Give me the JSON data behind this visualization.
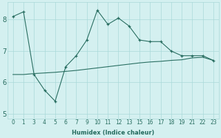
{
  "xlabel": "Humidex (Indice chaleur)",
  "xtick_labels": [
    "0",
    "1",
    "3",
    "4",
    "5",
    "6",
    "7",
    "9",
    "10",
    "11",
    "12",
    "13",
    "15",
    "16",
    "17",
    "18",
    "19",
    "21",
    "22",
    "23"
  ],
  "line1_y": [
    8.1,
    8.25,
    6.25,
    5.75,
    5.4,
    6.5,
    6.85,
    7.35,
    8.3,
    7.85,
    8.05,
    7.8,
    7.35,
    7.3,
    7.3,
    7.0,
    6.85,
    6.85,
    6.85,
    6.7
  ],
  "line2_y": [
    6.25,
    6.25,
    6.28,
    6.3,
    6.32,
    6.35,
    6.38,
    6.42,
    6.46,
    6.5,
    6.54,
    6.58,
    6.62,
    6.65,
    6.67,
    6.7,
    6.72,
    6.78,
    6.8,
    6.7
  ],
  "line_color": "#256b5e",
  "bg_color": "#d4f0f0",
  "grid_color": "#a8d8d8",
  "tick_color": "#256b5e",
  "ylim": [
    4.85,
    8.55
  ],
  "yticks": [
    5,
    6,
    7,
    8
  ],
  "ylabel_fontsize": 7,
  "xlabel_fontsize": 6,
  "tick_fontsize": 5.5
}
